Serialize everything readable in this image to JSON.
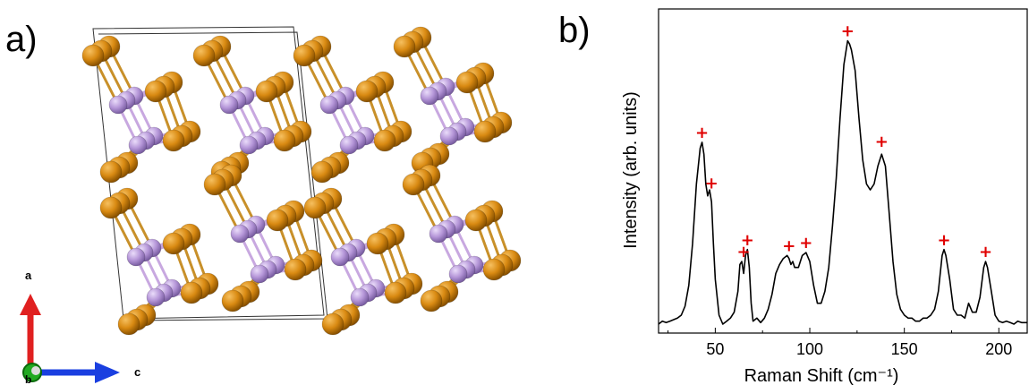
{
  "panel_a": {
    "label": "a)",
    "axis_labels": {
      "a": "a",
      "b": "b",
      "c": "c"
    },
    "colors": {
      "atom_metal": "#d98a12",
      "atom_pnictogen": "#b596d8",
      "bond_metal": "#c8902a",
      "bond_pnictogen": "#c8a8e0",
      "axis_a": "#e02020",
      "axis_b": "#22aa22",
      "axis_c": "#1a3fe0"
    }
  },
  "panel_b": {
    "label": "b)"
  },
  "chart_data": {
    "type": "line",
    "title": "",
    "xlabel": "Raman Shift (cm⁻¹)",
    "ylabel": "Intensity (arb. units)",
    "xlim": [
      20,
      215
    ],
    "ylim": [
      0,
      1
    ],
    "xticks": [
      50,
      100,
      150,
      200
    ],
    "grid": false,
    "series": [
      {
        "x": [
          20,
          22,
          24,
          26,
          28,
          30,
          32,
          34,
          36,
          38,
          40,
          42,
          43,
          44,
          45,
          46,
          47,
          48,
          49,
          50,
          52,
          54,
          56,
          58,
          60,
          62,
          63,
          64,
          65,
          66,
          67,
          68,
          69,
          70,
          72,
          74,
          76,
          78,
          80,
          82,
          84,
          86,
          88,
          89,
          90,
          91,
          92,
          94,
          96,
          98,
          100,
          102,
          104,
          106,
          108,
          110,
          112,
          114,
          116,
          118,
          120,
          121,
          122,
          124,
          126,
          128,
          130,
          132,
          134,
          136,
          138,
          140,
          142,
          144,
          146,
          148,
          150,
          152,
          154,
          156,
          158,
          160,
          162,
          164,
          166,
          168,
          170,
          171,
          172,
          174,
          176,
          178,
          180,
          182,
          184,
          186,
          188,
          190,
          192,
          193,
          194,
          196,
          198,
          200,
          202,
          204,
          206,
          208,
          210,
          212,
          215
        ],
        "y": [
          0.03,
          0.04,
          0.035,
          0.04,
          0.045,
          0.05,
          0.06,
          0.09,
          0.16,
          0.3,
          0.5,
          0.62,
          0.64,
          0.6,
          0.5,
          0.46,
          0.48,
          0.44,
          0.3,
          0.18,
          0.06,
          0.03,
          0.04,
          0.05,
          0.07,
          0.14,
          0.23,
          0.24,
          0.2,
          0.26,
          0.28,
          0.22,
          0.1,
          0.04,
          0.05,
          0.035,
          0.05,
          0.08,
          0.13,
          0.2,
          0.23,
          0.25,
          0.26,
          0.25,
          0.23,
          0.24,
          0.22,
          0.22,
          0.26,
          0.27,
          0.24,
          0.16,
          0.1,
          0.1,
          0.14,
          0.22,
          0.36,
          0.52,
          0.72,
          0.9,
          0.98,
          0.97,
          0.95,
          0.88,
          0.72,
          0.58,
          0.5,
          0.48,
          0.5,
          0.56,
          0.6,
          0.56,
          0.4,
          0.24,
          0.13,
          0.08,
          0.06,
          0.05,
          0.05,
          0.04,
          0.04,
          0.05,
          0.05,
          0.06,
          0.08,
          0.14,
          0.26,
          0.28,
          0.26,
          0.18,
          0.08,
          0.06,
          0.06,
          0.05,
          0.1,
          0.07,
          0.07,
          0.12,
          0.22,
          0.24,
          0.22,
          0.14,
          0.06,
          0.04,
          0.035,
          0.04,
          0.035,
          0.03,
          0.04,
          0.035,
          0.035
        ]
      }
    ],
    "markers": {
      "symbol": "+",
      "color": "#e00000",
      "positions": [
        {
          "x": 43,
          "y": 0.67
        },
        {
          "x": 48,
          "y": 0.5
        },
        {
          "x": 65,
          "y": 0.27
        },
        {
          "x": 67,
          "y": 0.31
        },
        {
          "x": 89,
          "y": 0.29
        },
        {
          "x": 98,
          "y": 0.3
        },
        {
          "x": 120,
          "y": 1.01
        },
        {
          "x": 138,
          "y": 0.64
        },
        {
          "x": 171,
          "y": 0.31
        },
        {
          "x": 193,
          "y": 0.27
        }
      ]
    }
  }
}
